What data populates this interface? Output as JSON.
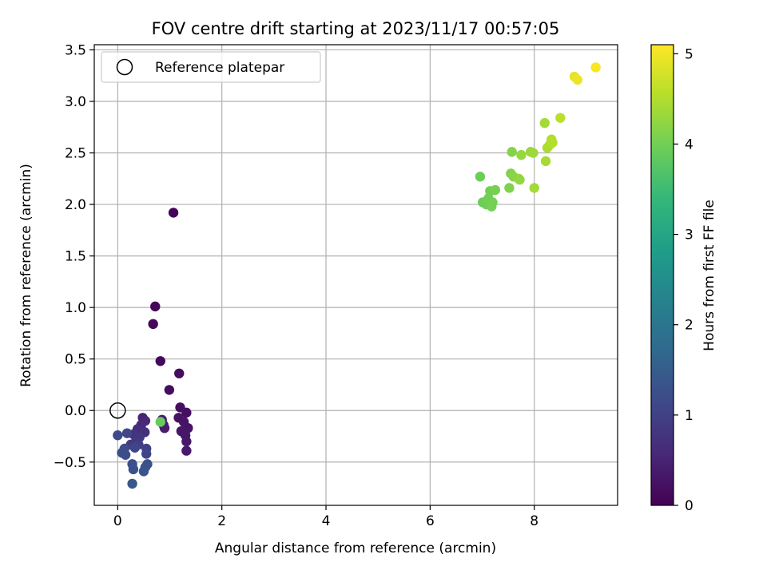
{
  "chart_data": {
    "type": "scatter",
    "title": "FOV centre drift starting at 2023/11/17 00:57:05",
    "xlabel": "Angular distance from reference (arcmin)",
    "ylabel": "Rotation from reference (arcmin)",
    "xlim": [
      -0.45,
      9.6
    ],
    "ylim": [
      -0.92,
      3.55
    ],
    "xticks": [
      0,
      2,
      4,
      6,
      8
    ],
    "xtick_labels": [
      "0",
      "2",
      "4",
      "6",
      "8"
    ],
    "yticks": [
      -0.5,
      0.0,
      0.5,
      1.0,
      1.5,
      2.0,
      2.5,
      3.0,
      3.5
    ],
    "ytick_labels": [
      "−0.5",
      "0.0",
      "0.5",
      "1.0",
      "1.5",
      "2.0",
      "2.5",
      "3.0",
      "3.5"
    ],
    "grid": true,
    "legend": {
      "placement": "top-left",
      "entries": [
        "Reference platepar"
      ]
    },
    "reference_point": {
      "x": 0,
      "y": 0
    },
    "colorbar": {
      "label": "Hours from first FF file",
      "range": [
        0,
        5.1
      ],
      "ticks": [
        0,
        1,
        2,
        3,
        4,
        5
      ],
      "tick_labels": [
        "0",
        "1",
        "2",
        "3",
        "4",
        "5"
      ],
      "colormap": [
        "#440154",
        "#482878",
        "#3e4989",
        "#31688e",
        "#26828e",
        "#1f9e89",
        "#35b779",
        "#6ece58",
        "#b5de2b",
        "#fde725"
      ]
    },
    "points": [
      {
        "x": 1.07,
        "y": 1.92,
        "h": 0.05
      },
      {
        "x": 0.72,
        "y": 1.01,
        "h": 0.08
      },
      {
        "x": 0.68,
        "y": 0.84,
        "h": 0.1
      },
      {
        "x": 0.82,
        "y": 0.48,
        "h": 0.12
      },
      {
        "x": 1.18,
        "y": 0.36,
        "h": 0.15
      },
      {
        "x": 0.99,
        "y": 0.2,
        "h": 0.18
      },
      {
        "x": 1.2,
        "y": 0.03,
        "h": 0.2
      },
      {
        "x": 1.32,
        "y": -0.02,
        "h": 0.22
      },
      {
        "x": 1.17,
        "y": -0.07,
        "h": 0.24
      },
      {
        "x": 1.27,
        "y": -0.11,
        "h": 0.26
      },
      {
        "x": 1.35,
        "y": -0.17,
        "h": 0.28
      },
      {
        "x": 1.22,
        "y": -0.2,
        "h": 0.3
      },
      {
        "x": 1.3,
        "y": -0.24,
        "h": 0.32
      },
      {
        "x": 1.32,
        "y": -0.3,
        "h": 0.34
      },
      {
        "x": 1.32,
        "y": -0.39,
        "h": 0.36
      },
      {
        "x": 0.85,
        "y": -0.09,
        "h": 0.38
      },
      {
        "x": 0.9,
        "y": -0.17,
        "h": 0.4
      },
      {
        "x": 0.88,
        "y": -0.14,
        "h": 0.42
      },
      {
        "x": 0.48,
        "y": -0.07,
        "h": 0.5
      },
      {
        "x": 0.53,
        "y": -0.1,
        "h": 0.55
      },
      {
        "x": 0.45,
        "y": -0.14,
        "h": 0.6
      },
      {
        "x": 0.38,
        "y": -0.18,
        "h": 0.65
      },
      {
        "x": 0.52,
        "y": -0.21,
        "h": 0.7
      },
      {
        "x": 0.3,
        "y": -0.23,
        "h": 0.75
      },
      {
        "x": 0.42,
        "y": -0.26,
        "h": 0.8
      },
      {
        "x": 0.35,
        "y": -0.3,
        "h": 0.85
      },
      {
        "x": 0.25,
        "y": -0.33,
        "h": 0.9
      },
      {
        "x": 0.4,
        "y": -0.33,
        "h": 0.95
      },
      {
        "x": 0.55,
        "y": -0.37,
        "h": 1.0
      },
      {
        "x": 0.55,
        "y": -0.42,
        "h": 1.05
      },
      {
        "x": 0.33,
        "y": -0.36,
        "h": 1.1
      },
      {
        "x": 0.18,
        "y": -0.22,
        "h": 1.12
      },
      {
        "x": 0.0,
        "y": -0.24,
        "h": 1.15
      },
      {
        "x": 0.13,
        "y": -0.37,
        "h": 1.18
      },
      {
        "x": 0.08,
        "y": -0.41,
        "h": 1.2
      },
      {
        "x": 0.15,
        "y": -0.43,
        "h": 1.22
      },
      {
        "x": 0.28,
        "y": -0.52,
        "h": 1.25
      },
      {
        "x": 0.3,
        "y": -0.57,
        "h": 1.28
      },
      {
        "x": 0.57,
        "y": -0.52,
        "h": 1.3
      },
      {
        "x": 0.53,
        "y": -0.55,
        "h": 1.32
      },
      {
        "x": 0.5,
        "y": -0.59,
        "h": 1.35
      },
      {
        "x": 0.28,
        "y": -0.71,
        "h": 1.4
      },
      {
        "x": 0.82,
        "y": -0.11,
        "h": 3.9
      },
      {
        "x": 6.96,
        "y": 2.27,
        "h": 3.95
      },
      {
        "x": 7.01,
        "y": 2.02,
        "h": 3.95
      },
      {
        "x": 7.08,
        "y": 2.0,
        "h": 3.98
      },
      {
        "x": 7.12,
        "y": 2.06,
        "h": 4.0
      },
      {
        "x": 7.15,
        "y": 2.13,
        "h": 4.0
      },
      {
        "x": 7.18,
        "y": 1.98,
        "h": 4.02
      },
      {
        "x": 7.2,
        "y": 2.02,
        "h": 4.02
      },
      {
        "x": 7.25,
        "y": 2.14,
        "h": 4.05
      },
      {
        "x": 7.52,
        "y": 2.16,
        "h": 4.1
      },
      {
        "x": 7.55,
        "y": 2.3,
        "h": 4.12
      },
      {
        "x": 7.57,
        "y": 2.51,
        "h": 4.15
      },
      {
        "x": 7.6,
        "y": 2.27,
        "h": 4.18
      },
      {
        "x": 7.7,
        "y": 2.25,
        "h": 4.22
      },
      {
        "x": 7.72,
        "y": 2.24,
        "h": 4.25
      },
      {
        "x": 7.75,
        "y": 2.48,
        "h": 4.28
      },
      {
        "x": 7.93,
        "y": 2.51,
        "h": 4.32
      },
      {
        "x": 7.98,
        "y": 2.5,
        "h": 4.35
      },
      {
        "x": 8.0,
        "y": 2.16,
        "h": 4.38
      },
      {
        "x": 8.2,
        "y": 2.79,
        "h": 4.4
      },
      {
        "x": 8.22,
        "y": 2.42,
        "h": 4.42
      },
      {
        "x": 8.25,
        "y": 2.55,
        "h": 4.45
      },
      {
        "x": 8.3,
        "y": 2.58,
        "h": 4.48
      },
      {
        "x": 8.33,
        "y": 2.63,
        "h": 4.5
      },
      {
        "x": 8.35,
        "y": 2.6,
        "h": 4.52
      },
      {
        "x": 8.5,
        "y": 2.84,
        "h": 4.58
      },
      {
        "x": 8.77,
        "y": 3.24,
        "h": 4.92
      },
      {
        "x": 8.83,
        "y": 3.21,
        "h": 4.95
      },
      {
        "x": 9.18,
        "y": 3.33,
        "h": 5.05
      }
    ]
  }
}
